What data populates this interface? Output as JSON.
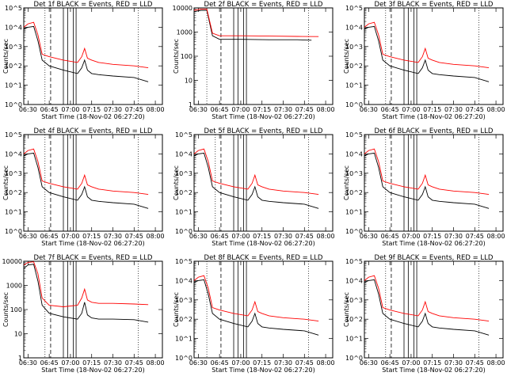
{
  "figure": {
    "title_template": "Det {n}f BLACK = Events, RED = LLD",
    "xlabel": "Start Time (18-Nov-02 06:27:20)",
    "ylabel": "Counts/sec",
    "xticks": [
      "06:30",
      "06:45",
      "07:00",
      "07:15",
      "07:30",
      "07:45",
      "08:00"
    ],
    "colors": {
      "events": "#000000",
      "lld": "#ff0000"
    }
  },
  "chart_data": [
    {
      "type": "line",
      "detector": "1f",
      "title": "Det 1f BLACK = Events, RED = LLD",
      "ylog": true,
      "ylim": [
        1,
        100000
      ],
      "yticks": [
        "10^5",
        "10^4",
        "10^3",
        "10^2",
        "10^1",
        "10^0"
      ],
      "vlines_dotted": [
        "06:42",
        "07:48"
      ],
      "vlines_dashed": [
        "06:46"
      ],
      "vlines_solid": [
        "06:55",
        "06:58",
        "07:02",
        "07:04"
      ],
      "series": [
        {
          "name": "BLACK = Events",
          "x": [
            "06:27",
            "06:30",
            "06:34",
            "06:37",
            "06:40",
            "06:45",
            "06:55",
            "07:05",
            "07:08",
            "07:10",
            "07:12",
            "07:15",
            "07:20",
            "07:30",
            "07:45",
            "07:55"
          ],
          "values": [
            8000,
            10000,
            11000,
            2000,
            200,
            100,
            60,
            40,
            80,
            200,
            60,
            40,
            35,
            30,
            25,
            15
          ]
        },
        {
          "name": "RED = LLD",
          "x": [
            "06:27",
            "06:30",
            "06:34",
            "06:37",
            "06:40",
            "06:45",
            "06:55",
            "07:05",
            "07:08",
            "07:10",
            "07:12",
            "07:15",
            "07:20",
            "07:30",
            "07:45",
            "07:55"
          ],
          "values": [
            10000,
            15000,
            18000,
            4000,
            400,
            300,
            200,
            150,
            300,
            800,
            250,
            200,
            150,
            120,
            100,
            80
          ]
        }
      ]
    },
    {
      "type": "line",
      "detector": "2f",
      "title": "Det 2f BLACK = Events, RED = LLD",
      "ylog": true,
      "ylim": [
        1,
        10000
      ],
      "yticks": [
        "10000",
        "1000",
        "100",
        "10",
        "1"
      ],
      "vlines_dotted": [
        "06:36",
        "07:48"
      ],
      "vlines_dashed": [
        "06:46"
      ],
      "vlines_solid": [
        "06:55",
        "06:58",
        "07:02",
        "07:04"
      ],
      "series": [
        {
          "name": "BLACK = Events",
          "x": [
            "06:27",
            "06:32",
            "06:36",
            "06:40",
            "06:45",
            "07:00",
            "07:20",
            "07:40",
            "07:50"
          ],
          "values": [
            7000,
            8000,
            8000,
            700,
            500,
            500,
            480,
            480,
            460
          ]
        },
        {
          "name": "RED = LLD",
          "x": [
            "06:27",
            "06:32",
            "06:36",
            "06:40",
            "06:45",
            "07:00",
            "07:20",
            "07:40",
            "07:55"
          ],
          "values": [
            8000,
            9000,
            9000,
            900,
            700,
            700,
            680,
            660,
            650
          ]
        }
      ]
    },
    {
      "type": "line",
      "detector": "3f",
      "title": "Det 3f BLACK = Events, RED = LLD",
      "ylog": true,
      "ylim": [
        1,
        100000
      ],
      "yticks": [
        "10^5",
        "10^4",
        "10^3",
        "10^2",
        "10^1",
        "10^0"
      ],
      "vlines_dotted": [
        "06:42",
        "07:48"
      ],
      "vlines_dashed": [
        "06:46"
      ],
      "vlines_solid": [
        "06:55",
        "06:58",
        "07:02",
        "07:04"
      ],
      "series": [
        {
          "name": "BLACK = Events",
          "x": [
            "06:27",
            "06:30",
            "06:34",
            "06:37",
            "06:40",
            "06:45",
            "06:55",
            "07:05",
            "07:08",
            "07:10",
            "07:12",
            "07:15",
            "07:20",
            "07:30",
            "07:45",
            "07:55"
          ],
          "values": [
            8000,
            10000,
            11000,
            2000,
            200,
            100,
            60,
            40,
            80,
            200,
            60,
            40,
            35,
            30,
            25,
            15
          ]
        },
        {
          "name": "RED = LLD",
          "x": [
            "06:27",
            "06:30",
            "06:34",
            "06:37",
            "06:40",
            "06:45",
            "06:55",
            "07:05",
            "07:08",
            "07:10",
            "07:12",
            "07:15",
            "07:20",
            "07:30",
            "07:45",
            "07:55"
          ],
          "values": [
            10000,
            15000,
            18000,
            4000,
            400,
            300,
            200,
            150,
            300,
            800,
            250,
            200,
            150,
            120,
            100,
            80
          ]
        }
      ]
    },
    {
      "type": "line",
      "detector": "4f",
      "title": "Det 4f BLACK = Events, RED = LLD",
      "ylog": true,
      "ylim": [
        1,
        100000
      ],
      "yticks": [
        "10^5",
        "10^4",
        "10^3",
        "10^2",
        "10^1",
        "10^0"
      ],
      "vlines_dotted": [
        "06:42",
        "07:48"
      ],
      "vlines_dashed": [
        "06:46"
      ],
      "vlines_solid": [
        "06:55",
        "06:58",
        "07:02",
        "07:04"
      ],
      "series": [
        {
          "name": "BLACK = Events",
          "x": [
            "06:27",
            "06:30",
            "06:34",
            "06:37",
            "06:40",
            "06:45",
            "06:55",
            "07:05",
            "07:08",
            "07:10",
            "07:12",
            "07:15",
            "07:20",
            "07:30",
            "07:45",
            "07:55"
          ],
          "values": [
            8000,
            10000,
            11000,
            2000,
            200,
            100,
            60,
            40,
            80,
            200,
            60,
            40,
            35,
            30,
            25,
            15
          ]
        },
        {
          "name": "RED = LLD",
          "x": [
            "06:27",
            "06:30",
            "06:34",
            "06:37",
            "06:40",
            "06:45",
            "06:55",
            "07:05",
            "07:08",
            "07:10",
            "07:12",
            "07:15",
            "07:20",
            "07:30",
            "07:45",
            "07:55"
          ],
          "values": [
            10000,
            15000,
            18000,
            4000,
            400,
            300,
            200,
            150,
            300,
            800,
            250,
            200,
            150,
            120,
            100,
            80
          ]
        }
      ]
    },
    {
      "type": "line",
      "detector": "5f",
      "title": "Det 5f BLACK = Events, RED = LLD",
      "ylog": true,
      "ylim": [
        1,
        100000
      ],
      "yticks": [
        "10^5",
        "10^4",
        "10^3",
        "10^2",
        "10^1",
        "10^0"
      ],
      "vlines_dotted": [
        "06:42",
        "07:48"
      ],
      "vlines_dashed": [
        "06:46"
      ],
      "vlines_solid": [
        "06:55",
        "06:58",
        "07:02",
        "07:04"
      ],
      "series": [
        {
          "name": "BLACK = Events",
          "x": [
            "06:27",
            "06:30",
            "06:34",
            "06:37",
            "06:40",
            "06:45",
            "06:55",
            "07:05",
            "07:08",
            "07:10",
            "07:12",
            "07:15",
            "07:20",
            "07:30",
            "07:45",
            "07:55"
          ],
          "values": [
            8000,
            10000,
            11000,
            2000,
            200,
            100,
            60,
            40,
            80,
            200,
            60,
            40,
            35,
            30,
            25,
            15
          ]
        },
        {
          "name": "RED = LLD",
          "x": [
            "06:27",
            "06:30",
            "06:34",
            "06:37",
            "06:40",
            "06:45",
            "06:55",
            "07:05",
            "07:08",
            "07:10",
            "07:12",
            "07:15",
            "07:20",
            "07:30",
            "07:45",
            "07:55"
          ],
          "values": [
            10000,
            15000,
            18000,
            4000,
            400,
            300,
            200,
            150,
            300,
            800,
            250,
            200,
            150,
            120,
            100,
            80
          ]
        }
      ]
    },
    {
      "type": "line",
      "detector": "6f",
      "title": "Det 6f BLACK = Events, RED = LLD",
      "ylog": true,
      "ylim": [
        1,
        100000
      ],
      "yticks": [
        "10^5",
        "10^4",
        "10^3",
        "10^2",
        "10^1",
        "10^0"
      ],
      "vlines_dotted": [
        "06:42",
        "07:48"
      ],
      "vlines_dashed": [
        "06:46"
      ],
      "vlines_solid": [
        "06:55",
        "06:58",
        "07:02",
        "07:04"
      ],
      "series": [
        {
          "name": "BLACK = Events",
          "x": [
            "06:27",
            "06:30",
            "06:34",
            "06:37",
            "06:40",
            "06:45",
            "06:55",
            "07:05",
            "07:08",
            "07:10",
            "07:12",
            "07:15",
            "07:20",
            "07:30",
            "07:45",
            "07:55"
          ],
          "values": [
            8000,
            10000,
            11000,
            2000,
            200,
            100,
            60,
            40,
            80,
            200,
            60,
            40,
            35,
            30,
            25,
            15
          ]
        },
        {
          "name": "RED = LLD",
          "x": [
            "06:27",
            "06:30",
            "06:34",
            "06:37",
            "06:40",
            "06:45",
            "06:55",
            "07:05",
            "07:08",
            "07:10",
            "07:12",
            "07:15",
            "07:20",
            "07:30",
            "07:45",
            "07:55"
          ],
          "values": [
            10000,
            15000,
            18000,
            4000,
            400,
            300,
            200,
            150,
            300,
            800,
            250,
            200,
            150,
            120,
            100,
            80
          ]
        }
      ]
    },
    {
      "type": "line",
      "detector": "7f",
      "title": "Det 7f BLACK = Events, RED = LLD",
      "ylog": true,
      "ylim": [
        1,
        10000
      ],
      "yticks": [
        "10000",
        "1000",
        "100",
        "10",
        "1"
      ],
      "vlines_dotted": [
        "06:42",
        "07:48"
      ],
      "vlines_dashed": [
        "06:46"
      ],
      "vlines_solid": [
        "06:55",
        "06:58",
        "07:02",
        "07:04"
      ],
      "series": [
        {
          "name": "BLACK = Events",
          "x": [
            "06:27",
            "06:30",
            "06:34",
            "06:37",
            "06:40",
            "06:45",
            "06:55",
            "07:05",
            "07:08",
            "07:10",
            "07:12",
            "07:15",
            "07:20",
            "07:30",
            "07:45",
            "07:55"
          ],
          "values": [
            5000,
            7000,
            7500,
            1500,
            150,
            70,
            50,
            40,
            70,
            200,
            60,
            45,
            40,
            40,
            38,
            30
          ]
        },
        {
          "name": "RED = LLD",
          "x": [
            "06:27",
            "06:30",
            "06:34",
            "06:37",
            "06:40",
            "06:45",
            "06:55",
            "07:05",
            "07:08",
            "07:10",
            "07:12",
            "07:15",
            "07:20",
            "07:30",
            "07:45",
            "07:55"
          ],
          "values": [
            7000,
            9000,
            9500,
            3000,
            300,
            150,
            130,
            150,
            300,
            700,
            250,
            200,
            180,
            180,
            170,
            160
          ]
        }
      ]
    },
    {
      "type": "line",
      "detector": "8f",
      "title": "Det 8f BLACK = Events, RED = LLD",
      "ylog": true,
      "ylim": [
        1,
        100000
      ],
      "yticks": [
        "10^5",
        "10^4",
        "10^3",
        "10^2",
        "10^1",
        "10^0"
      ],
      "vlines_dotted": [
        "06:36",
        "07:48"
      ],
      "vlines_dashed": [
        "06:46"
      ],
      "vlines_solid": [
        "06:55",
        "06:58",
        "07:02",
        "07:04"
      ],
      "series": [
        {
          "name": "BLACK = Events",
          "x": [
            "06:27",
            "06:30",
            "06:34",
            "06:37",
            "06:40",
            "06:45",
            "06:55",
            "07:05",
            "07:08",
            "07:10",
            "07:12",
            "07:15",
            "07:20",
            "07:30",
            "07:45",
            "07:55"
          ],
          "values": [
            8000,
            10000,
            11000,
            2000,
            200,
            100,
            60,
            40,
            80,
            200,
            60,
            40,
            35,
            30,
            25,
            15
          ]
        },
        {
          "name": "RED = LLD",
          "x": [
            "06:27",
            "06:30",
            "06:34",
            "06:37",
            "06:40",
            "06:45",
            "06:55",
            "07:05",
            "07:08",
            "07:10",
            "07:12",
            "07:15",
            "07:20",
            "07:30",
            "07:45",
            "07:55"
          ],
          "values": [
            10000,
            15000,
            18000,
            4000,
            400,
            300,
            200,
            150,
            300,
            800,
            250,
            200,
            150,
            120,
            100,
            80
          ]
        }
      ]
    },
    {
      "type": "line",
      "detector": "9f",
      "title": "Det 9f BLACK = Events, RED = LLD",
      "ylog": true,
      "ylim": [
        1,
        100000
      ],
      "yticks": [
        "10^5",
        "10^4",
        "10^3",
        "10^2",
        "10^1",
        "10^0"
      ],
      "vlines_dotted": [
        "06:42",
        "07:48"
      ],
      "vlines_dashed": [
        "06:46"
      ],
      "vlines_solid": [
        "06:55",
        "06:58",
        "07:02",
        "07:04"
      ],
      "series": [
        {
          "name": "BLACK = Events",
          "x": [
            "06:27",
            "06:30",
            "06:34",
            "06:37",
            "06:40",
            "06:45",
            "06:55",
            "07:05",
            "07:08",
            "07:10",
            "07:12",
            "07:15",
            "07:20",
            "07:30",
            "07:45",
            "07:55"
          ],
          "values": [
            8000,
            10000,
            11000,
            2000,
            200,
            100,
            60,
            40,
            80,
            200,
            60,
            40,
            35,
            30,
            25,
            15
          ]
        },
        {
          "name": "RED = LLD",
          "x": [
            "06:27",
            "06:30",
            "06:34",
            "06:37",
            "06:40",
            "06:45",
            "06:55",
            "07:05",
            "07:08",
            "07:10",
            "07:12",
            "07:15",
            "07:20",
            "07:30",
            "07:45",
            "07:55"
          ],
          "values": [
            10000,
            15000,
            18000,
            4000,
            400,
            300,
            200,
            150,
            300,
            800,
            250,
            200,
            150,
            120,
            100,
            80
          ]
        }
      ]
    }
  ]
}
